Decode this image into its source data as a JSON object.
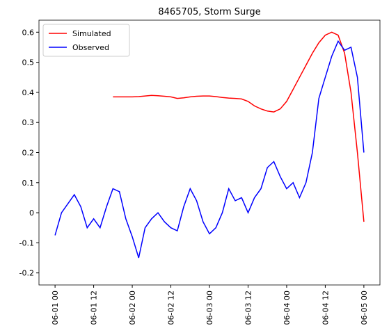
{
  "chart_data": {
    "type": "line",
    "title": "8465705, Storm Surge",
    "x": [
      "06-01 00",
      "06-01 02",
      "06-01 04",
      "06-01 06",
      "06-01 08",
      "06-01 10",
      "06-01 12",
      "06-01 14",
      "06-01 16",
      "06-01 18",
      "06-01 20",
      "06-01 22",
      "06-02 00",
      "06-02 02",
      "06-02 04",
      "06-02 06",
      "06-02 08",
      "06-02 10",
      "06-02 12",
      "06-02 14",
      "06-02 16",
      "06-02 18",
      "06-02 20",
      "06-02 22",
      "06-03 00",
      "06-03 02",
      "06-03 04",
      "06-03 06",
      "06-03 08",
      "06-03 10",
      "06-03 12",
      "06-03 14",
      "06-03 16",
      "06-03 18",
      "06-03 20",
      "06-03 22",
      "06-04 00",
      "06-04 02",
      "06-04 04",
      "06-04 06",
      "06-04 08",
      "06-04 10",
      "06-04 12",
      "06-04 14",
      "06-04 16",
      "06-04 18",
      "06-04 20",
      "06-04 22",
      "06-05 00"
    ],
    "series": [
      {
        "name": "Simulated",
        "color": "#ff0000",
        "values": [
          null,
          null,
          null,
          null,
          null,
          null,
          null,
          null,
          null,
          0.385,
          0.385,
          0.385,
          0.385,
          0.386,
          0.388,
          0.39,
          0.389,
          0.387,
          0.385,
          0.38,
          0.382,
          0.385,
          0.387,
          0.388,
          0.388,
          0.386,
          0.383,
          0.381,
          0.38,
          0.378,
          0.37,
          0.355,
          0.345,
          0.338,
          0.335,
          0.345,
          0.37,
          0.41,
          0.45,
          0.49,
          0.53,
          0.565,
          0.59,
          0.6,
          0.59,
          0.53,
          0.4,
          0.2,
          -0.03
        ]
      },
      {
        "name": "Observed",
        "color": "#0000ff",
        "values": [
          -0.075,
          0.0,
          0.03,
          0.06,
          0.02,
          -0.05,
          -0.02,
          -0.05,
          0.02,
          0.08,
          0.07,
          -0.02,
          -0.08,
          -0.15,
          -0.05,
          -0.02,
          0.0,
          -0.03,
          -0.05,
          -0.06,
          0.02,
          0.08,
          0.04,
          -0.03,
          -0.07,
          -0.05,
          0.0,
          0.08,
          0.04,
          0.05,
          0.0,
          0.05,
          0.08,
          0.15,
          0.17,
          0.12,
          0.08,
          0.1,
          0.05,
          0.1,
          0.2,
          0.38,
          0.45,
          0.52,
          0.57,
          0.54,
          0.55,
          0.45,
          0.2
        ]
      }
    ],
    "xlim": [
      "05-31 19",
      "06-05 05"
    ],
    "xticks": [
      "06-01 00",
      "06-01 12",
      "06-02 00",
      "06-02 12",
      "06-03 00",
      "06-03 12",
      "06-04 00",
      "06-04 12",
      "06-05 00"
    ],
    "ylim": [
      -0.24,
      0.64
    ],
    "yticks": [
      -0.2,
      -0.1,
      0.0,
      0.1,
      0.2,
      0.3,
      0.4,
      0.5,
      0.6
    ],
    "legend": "upper left"
  }
}
